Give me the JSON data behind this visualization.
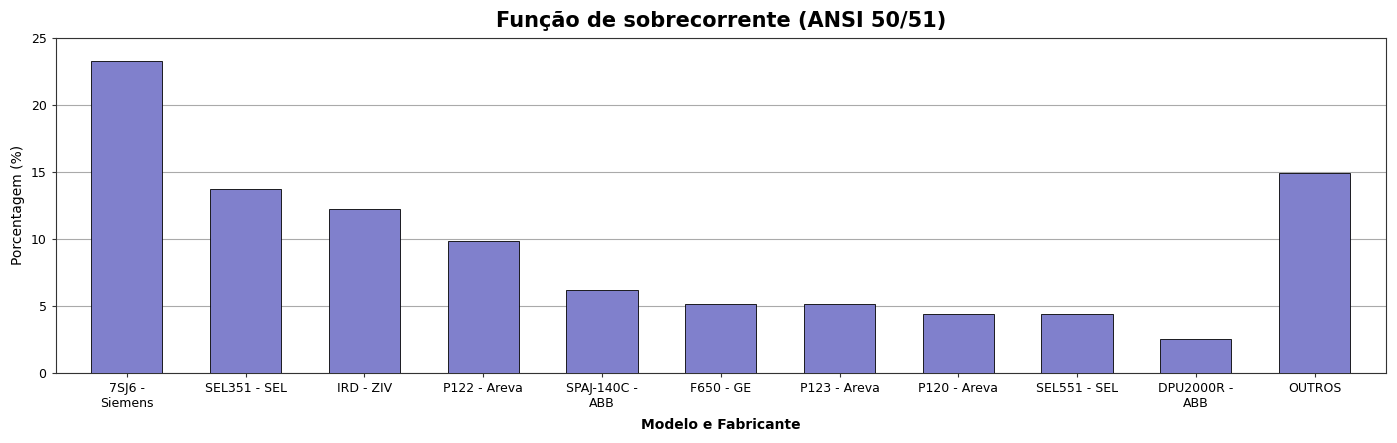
{
  "title": "Função de sobrecorrente (ANSI 50/51)",
  "xlabel": "Modelo e Fabricante",
  "ylabel": "Porcentagem (%)",
  "categories": [
    "7SJ6 -\nSiemens",
    "SEL351 - SEL",
    "IRD - ZIV",
    "P122 - Areva",
    "SPAJ-140C -\nABB",
    "F650 - GE",
    "P123 - Areva",
    "P120 - Areva",
    "SEL551 - SEL",
    "DPU2000R -\nABB",
    "OUTROS"
  ],
  "values": [
    23.3,
    13.7,
    12.2,
    9.8,
    6.2,
    5.1,
    5.1,
    4.4,
    4.4,
    2.5,
    14.9
  ],
  "bar_color": "#8080cc",
  "bar_edge_color": "#000000",
  "ylim": [
    0,
    25
  ],
  "yticks": [
    0,
    5,
    10,
    15,
    20,
    25
  ],
  "background_color": "#ffffff",
  "plot_bg_color": "#ffffff",
  "grid_color": "#aaaaaa",
  "title_fontsize": 15,
  "label_fontsize": 10,
  "tick_fontsize": 9
}
